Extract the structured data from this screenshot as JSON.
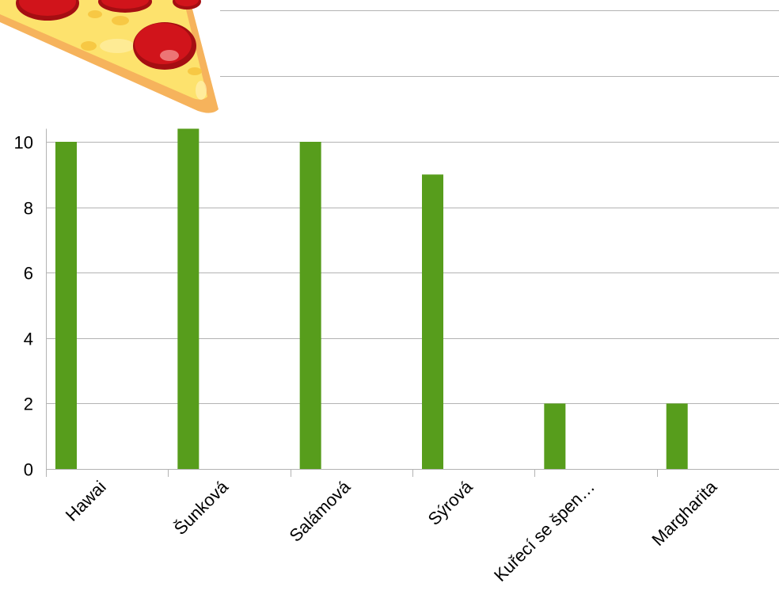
{
  "chart_data": {
    "type": "bar",
    "categories": [
      "Hawai",
      "Šunková",
      "Salámová",
      "Sýrová",
      "Kuřecí se špen…",
      "Margharita"
    ],
    "series": [
      {
        "values": [
          10,
          10.4,
          10,
          9,
          2,
          2
        ],
        "color": "#579d1c"
      }
    ],
    "yticks": [
      0,
      2,
      4,
      6,
      8,
      10
    ],
    "ylim": [
      0,
      10.4
    ],
    "grid": true,
    "legend": "none",
    "title": "",
    "xlabel": "",
    "ylabel": ""
  },
  "decoration": {
    "icon": "pizza-slice-icon",
    "colors": {
      "crust": "#f6b35c",
      "cheese": "#fde26d",
      "pepperoni": "#d1141b"
    }
  }
}
